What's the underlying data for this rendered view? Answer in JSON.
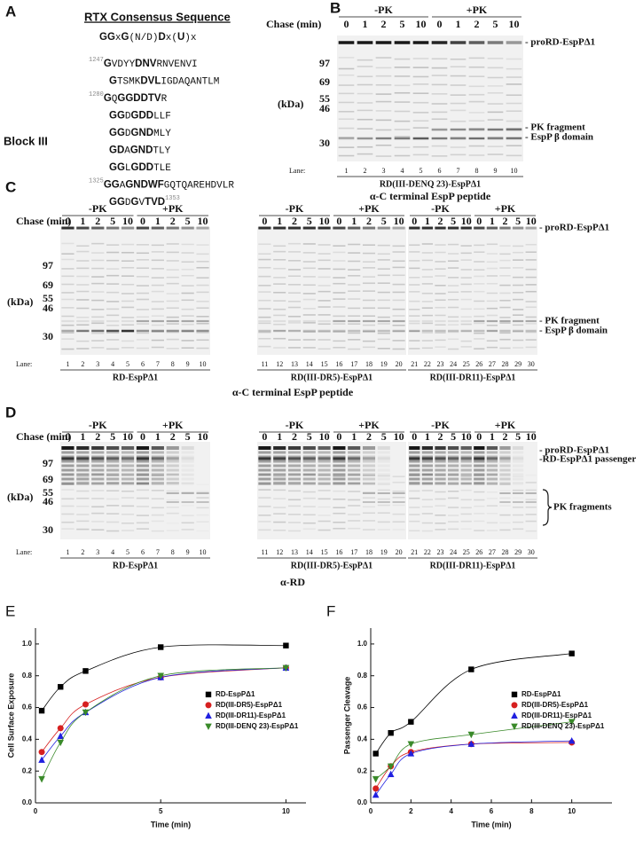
{
  "panel_a": {
    "letter": "A",
    "title": "RTX Consensus Sequence",
    "consensus": [
      {
        "text": "GG",
        "style": "bold"
      },
      {
        "text": "x",
        "style": "normal"
      },
      {
        "text": "G",
        "style": "bold"
      },
      {
        "text": "(N/D)",
        "style": "normal"
      },
      {
        "text": "D",
        "style": "bold"
      },
      {
        "text": "x(",
        "style": "normal"
      },
      {
        "text": "U",
        "style": "bold"
      },
      {
        "text": ")x",
        "style": "normal"
      }
    ],
    "block": "Block III",
    "lines": [
      [
        {
          "text": "1247",
          "style": "sup"
        },
        {
          "text": "G",
          "style": "bold"
        },
        {
          "text": "VDYY",
          "style": "normal"
        },
        {
          "text": "DNV",
          "style": "bold"
        },
        {
          "text": "RNVENVI",
          "style": "normal"
        }
      ],
      [
        {
          "text": "G",
          "style": "bold"
        },
        {
          "text": "TSMK",
          "style": "normal"
        },
        {
          "text": "DVL",
          "style": "bold"
        },
        {
          "text": "IGDAQANTLM",
          "style": "normal"
        }
      ],
      [
        {
          "text": "1280",
          "style": "sup"
        },
        {
          "text": "G",
          "style": "bold"
        },
        {
          "text": "Q",
          "style": "normal"
        },
        {
          "text": "GGDDTV",
          "style": "bold"
        },
        {
          "text": "R",
          "style": "normal"
        }
      ],
      [
        {
          "text": "GG",
          "style": "bold"
        },
        {
          "text": "D",
          "style": "normal"
        },
        {
          "text": "GDD",
          "style": "bold"
        },
        {
          "text": "LLF",
          "style": "normal"
        }
      ],
      [
        {
          "text": "GG",
          "style": "bold"
        },
        {
          "text": "D",
          "style": "normal"
        },
        {
          "text": "GND",
          "style": "bold"
        },
        {
          "text": "MLY",
          "style": "normal"
        }
      ],
      [
        {
          "text": "GD",
          "style": "bold"
        },
        {
          "text": "A",
          "style": "normal"
        },
        {
          "text": "GND",
          "style": "bold"
        },
        {
          "text": "TLY",
          "style": "normal"
        }
      ],
      [
        {
          "text": "GG",
          "style": "bold"
        },
        {
          "text": "L",
          "style": "normal"
        },
        {
          "text": "GDD",
          "style": "bold"
        },
        {
          "text": "TLE",
          "style": "normal"
        }
      ],
      [
        {
          "text": "1325",
          "style": "sup"
        },
        {
          "text": "GG",
          "style": "bold"
        },
        {
          "text": "A",
          "style": "normal"
        },
        {
          "text": "GNDWF",
          "style": "bold"
        },
        {
          "text": "GQTQAREHDVLR",
          "style": "normal"
        }
      ],
      [
        {
          "text": "GG",
          "style": "bold"
        },
        {
          "text": "D",
          "style": "normal"
        },
        {
          "text": "G",
          "style": "bold"
        },
        {
          "text": "V",
          "style": "normal"
        },
        {
          "text": "TVD",
          "style": "bold"
        },
        {
          "text": "1353",
          "style": "sup"
        }
      ]
    ]
  },
  "panel_b": {
    "letter": "B",
    "chase": "Chase (min)",
    "mw_unit": "(kDa)",
    "mw": [
      97,
      69,
      55,
      46,
      30
    ],
    "lane_label": "Lane:",
    "band_labels": [
      "- proRD-EspPΔ1",
      "- PK fragment",
      "- EspP β domain"
    ],
    "antibody": "α-C terminal EspP peptide",
    "gels": [
      {
        "groups": [
          {
            "label": "-PK",
            "times": [
              0,
              1,
              2,
              5,
              10
            ]
          },
          {
            "label": "+PK",
            "times": [
              0,
              1,
              2,
              5,
              10
            ]
          }
        ],
        "lanes": [
          1,
          2,
          3,
          4,
          5,
          6,
          7,
          8,
          9,
          10
        ],
        "construct": "RD(III-DENQ 23)-EspPΔ1"
      }
    ]
  },
  "panel_c": {
    "letter": "C",
    "chase": "Chase (min)",
    "mw_unit": "(kDa)",
    "mw": [
      97,
      69,
      55,
      46,
      30
    ],
    "lane_label": "Lane:",
    "band_labels": [
      "- proRD-EspPΔ1",
      "- PK fragment",
      "- EspP β domain"
    ],
    "antibody": "α-C terminal EspP peptide",
    "gels": [
      {
        "groups": [
          {
            "label": "-PK",
            "times": [
              0,
              1,
              2,
              5,
              10
            ]
          },
          {
            "label": "+PK",
            "times": [
              0,
              1,
              2,
              5,
              10
            ]
          }
        ],
        "lanes": [
          1,
          2,
          3,
          4,
          5,
          6,
          7,
          8,
          9,
          10
        ],
        "construct": "RD-EspPΔ1"
      },
      {
        "groups": [
          {
            "label": "-PK",
            "times": [
              0,
              1,
              2,
              5,
              10
            ]
          },
          {
            "label": "+PK",
            "times": [
              0,
              1,
              2,
              5,
              10
            ]
          }
        ],
        "lanes": [
          11,
          12,
          13,
          14,
          15,
          16,
          17,
          18,
          19,
          20
        ],
        "construct": "RD(III-DR5)-EspPΔ1"
      },
      {
        "groups": [
          {
            "label": "-PK",
            "times": [
              0,
              1,
              2,
              5,
              10
            ]
          },
          {
            "label": "+PK",
            "times": [
              0,
              1,
              2,
              5,
              10
            ]
          }
        ],
        "lanes": [
          21,
          22,
          23,
          24,
          25,
          26,
          27,
          28,
          29,
          30
        ],
        "construct": "RD(III-DR11)-EspPΔ1"
      }
    ]
  },
  "panel_d": {
    "letter": "D",
    "chase": "Chase (min)",
    "mw_unit": "(kDa)",
    "mw": [
      97,
      69,
      55,
      46,
      30
    ],
    "lane_label": "Lane:",
    "band_labels": [
      "- proRD-EspPΔ1",
      "-RD-EspPΔ1 passenger",
      "PK fragments"
    ],
    "antibody": "α-RD",
    "gels": [
      {
        "groups": [
          {
            "label": "-PK",
            "times": [
              0,
              1,
              2,
              5,
              10
            ]
          },
          {
            "label": "+PK",
            "times": [
              0,
              1,
              2,
              5,
              10
            ]
          }
        ],
        "lanes": [
          1,
          2,
          3,
          4,
          5,
          6,
          7,
          8,
          9,
          10
        ],
        "construct": "RD-EspPΔ1"
      },
      {
        "groups": [
          {
            "label": "-PK",
            "times": [
              0,
              1,
              2,
              5,
              10
            ]
          },
          {
            "label": "+PK",
            "times": [
              0,
              1,
              2,
              5,
              10
            ]
          }
        ],
        "lanes": [
          11,
          12,
          13,
          14,
          15,
          16,
          17,
          18,
          19,
          20
        ],
        "construct": "RD(III-DR5)-EspPΔ1"
      },
      {
        "groups": [
          {
            "label": "-PK",
            "times": [
              0,
              1,
              2,
              5,
              10
            ]
          },
          {
            "label": "+PK",
            "times": [
              0,
              1,
              2,
              5,
              10
            ]
          }
        ],
        "lanes": [
          21,
          22,
          23,
          24,
          25,
          26,
          27,
          28,
          29,
          30
        ],
        "construct": "RD(III-DR11)-EspPΔ1"
      }
    ]
  },
  "chart_data": [
    {
      "type": "scatter",
      "panel_label": "E",
      "x_label": "Time (min)",
      "y_label": "Cell Surface Exposure",
      "x": [
        0.25,
        1,
        2,
        5,
        10
      ],
      "xlim": [
        0,
        10.8
      ],
      "xticks": [
        0,
        5,
        10
      ],
      "ylim": [
        0,
        1.1
      ],
      "yticks": [
        {
          "value": 0,
          "label": "0.0"
        },
        {
          "value": 0.2,
          "label": "0.2"
        },
        {
          "value": 0.4,
          "label": "0.4"
        },
        {
          "value": 0.6,
          "label": "0.6"
        },
        {
          "value": 0.8,
          "label": "0.8"
        },
        {
          "value": 1,
          "label": "1.0"
        }
      ],
      "legend": "right",
      "series": [
        {
          "name": "RD-EspPΔ1",
          "color": "#000000",
          "marker": "square",
          "values": [
            0.58,
            0.73,
            0.83,
            0.98,
            0.99
          ]
        },
        {
          "name": "RD(III-DR5)-EspPΔ1",
          "color": "#d62020",
          "marker": "circle",
          "values": [
            0.32,
            0.47,
            0.62,
            0.79,
            0.85
          ]
        },
        {
          "name": "RD(III-DR11)-EspPΔ1",
          "color": "#2020e0",
          "marker": "triangle-up",
          "values": [
            0.27,
            0.42,
            0.57,
            0.79,
            0.85
          ]
        },
        {
          "name": "RD(III-DENQ 23)-EspPΔ1",
          "color": "#3a8a2a",
          "marker": "triangle-down",
          "values": [
            0.15,
            0.38,
            0.57,
            0.8,
            0.85
          ]
        }
      ]
    },
    {
      "type": "scatter",
      "panel_label": "F",
      "x_label": "Time (min)",
      "y_label": "Passenger Cleavage",
      "x": [
        0.25,
        1,
        2,
        5,
        10
      ],
      "xlim": [
        0,
        12
      ],
      "xticks": [
        0,
        2,
        4,
        6,
        8,
        10
      ],
      "ylim": [
        0,
        1.1
      ],
      "yticks": [
        {
          "value": 0,
          "label": "0.0"
        },
        {
          "value": 0.2,
          "label": "0.2"
        },
        {
          "value": 0.4,
          "label": "0.4"
        },
        {
          "value": 0.6,
          "label": "0.6"
        },
        {
          "value": 0.8,
          "label": "0.8"
        },
        {
          "value": 1,
          "label": "1.0"
        }
      ],
      "legend": "right",
      "series": [
        {
          "name": "RD-EspPΔ1",
          "color": "#000000",
          "marker": "square",
          "values": [
            0.31,
            0.44,
            0.51,
            0.84,
            0.94
          ]
        },
        {
          "name": "RD(III-DR5)-EspPΔ1",
          "color": "#d62020",
          "marker": "circle",
          "values": [
            0.09,
            0.23,
            0.32,
            0.37,
            0.38
          ]
        },
        {
          "name": "RD(III-DR11)-EspPΔ1",
          "color": "#2020e0",
          "marker": "triangle-up",
          "values": [
            0.05,
            0.18,
            0.31,
            0.37,
            0.39
          ]
        },
        {
          "name": "RD(III-DENQ 23)-EspPΔ1",
          "color": "#3a8a2a",
          "marker": "triangle-down",
          "values": [
            0.15,
            0.23,
            0.37,
            0.43,
            0.51
          ]
        }
      ]
    }
  ]
}
